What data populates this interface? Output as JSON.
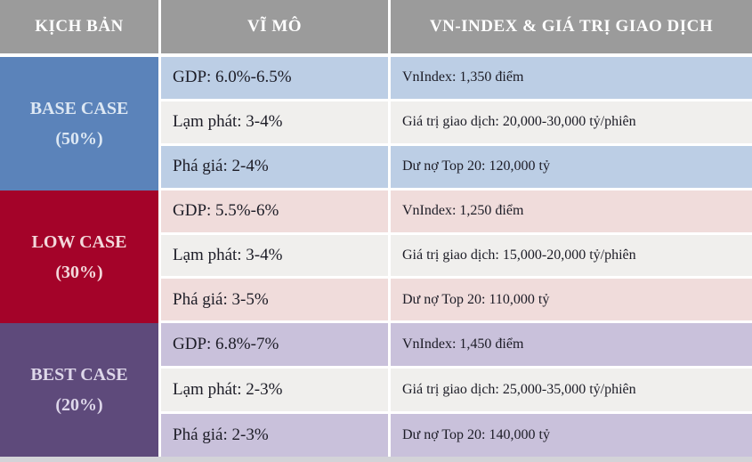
{
  "colors": {
    "header-bg": "#9b9b9b",
    "base-bg": "#5b83ba",
    "base-row": "#bccee5",
    "base-label": "#dce7f3",
    "low-bg": "#a40329",
    "low-row": "#f0dcdb",
    "low-label": "#f3d8db",
    "best-bg": "#5e4a7b",
    "best-row": "#c9c1db",
    "best-label": "#ded7ea",
    "mid-row": "#f0efed",
    "text-dark": "#1c1c26",
    "bottom-strip": "#d3d3d8"
  },
  "chart_data": {
    "type": "table",
    "columns": [
      "KỊCH BẢN",
      "VĨ MÔ",
      "VN-INDEX & GIÁ TRỊ GIAO DỊCH"
    ],
    "sections": [
      {
        "case": "BASE CASE",
        "probability": "(50%)",
        "rows": [
          {
            "macro": "GDP: 6.0%-6.5%",
            "market": "VnIndex: 1,350 điểm"
          },
          {
            "macro": "Lạm phát: 3-4%",
            "market": "Giá trị giao dịch: 20,000-30,000 tỷ/phiên"
          },
          {
            "macro": "Phá giá: 2-4%",
            "market": "Dư nợ Top 20: 120,000 tỷ"
          }
        ]
      },
      {
        "case": "LOW CASE",
        "probability": "(30%)",
        "rows": [
          {
            "macro": "GDP: 5.5%-6%",
            "market": "VnIndex: 1,250 điểm"
          },
          {
            "macro": "Lạm phát: 3-4%",
            "market": "Giá trị giao dịch: 15,000-20,000 tỷ/phiên"
          },
          {
            "macro": "Phá giá: 3-5%",
            "market": "Dư nợ Top 20: 110,000 tỷ"
          }
        ]
      },
      {
        "case": "BEST CASE",
        "probability": "(20%)",
        "rows": [
          {
            "macro": "GDP: 6.8%-7%",
            "market": "VnIndex: 1,450 điểm"
          },
          {
            "macro": "Lạm phát: 2-3%",
            "market": "Giá trị giao dịch: 25,000-35,000 tỷ/phiên"
          },
          {
            "macro": "Phá giá: 2-3%",
            "market": "Dư nợ Top 20: 140,000 tỷ"
          }
        ]
      }
    ]
  }
}
